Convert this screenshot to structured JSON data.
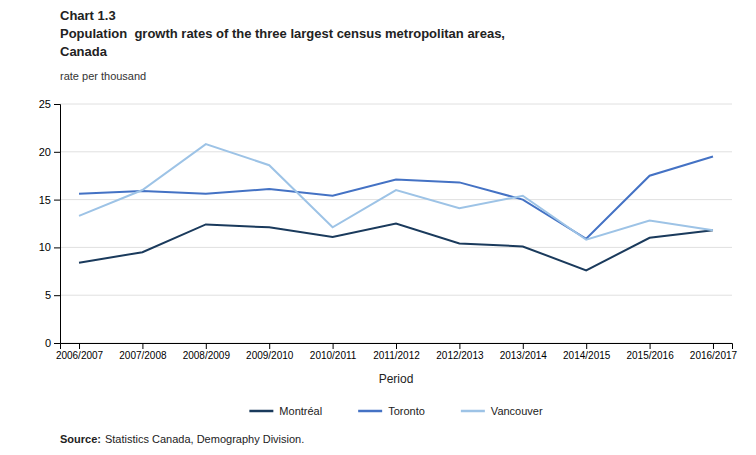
{
  "chart_data": {
    "type": "line",
    "title": [
      "Chart 1.3",
      "Population  growth rates of the three largest census metropolitan areas,",
      "Canada"
    ],
    "subtitle": "rate per thousand",
    "x_label": "Period",
    "categories": [
      "2006/2007",
      "2007/2008",
      "2008/2009",
      "2009/2010",
      "2010/2011",
      "2011/2012",
      "2012/2013",
      "2013/2014",
      "2014/2015",
      "2015/2016",
      "2016/2017"
    ],
    "series": [
      {
        "name": "Montréal",
        "color": "#1a3a5c",
        "values": [
          8.4,
          9.5,
          12.4,
          12.1,
          11.1,
          12.5,
          10.4,
          10.1,
          7.6,
          11.0,
          11.8
        ]
      },
      {
        "name": "Toronto",
        "color": "#4472c4",
        "values": [
          15.6,
          15.9,
          15.6,
          16.1,
          15.4,
          17.1,
          16.8,
          15.0,
          10.9,
          17.5,
          19.5
        ]
      },
      {
        "name": "Vancouver",
        "color": "#9dc3e6",
        "values": [
          13.3,
          16.0,
          20.8,
          18.6,
          12.1,
          16.0,
          14.1,
          15.4,
          10.8,
          12.8,
          11.8
        ]
      }
    ],
    "ylim": [
      0,
      25
    ],
    "yticks": [
      0,
      5,
      10,
      15,
      20,
      25
    ],
    "grid": true,
    "legend": "bottom",
    "annotations": [
      "Source:",
      "Statistics Canada, Demography Division."
    ]
  }
}
